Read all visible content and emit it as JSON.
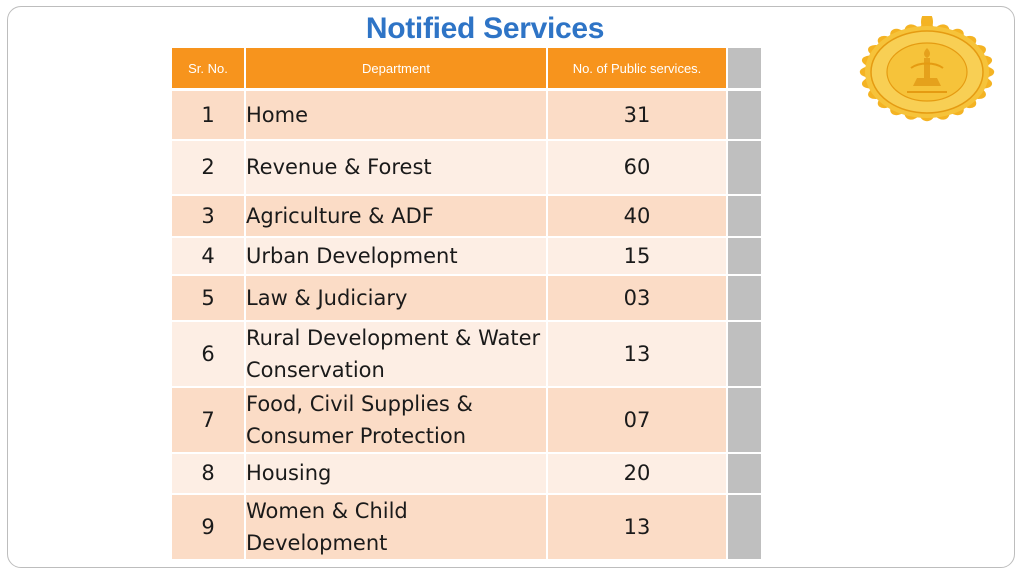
{
  "slide": {
    "title": "Notified Services"
  },
  "table": {
    "headers": [
      "Sr. No.",
      "Department",
      "No. of  Public services."
    ],
    "rows": [
      {
        "sr": "1",
        "department": "Home",
        "count": "31"
      },
      {
        "sr": "2",
        "department": "Revenue & Forest",
        "count": "60"
      },
      {
        "sr": "3",
        "department": "Agriculture & ADF",
        "count": "40"
      },
      {
        "sr": "4",
        "department": "Urban Development",
        "count": "15"
      },
      {
        "sr": "5",
        "department": "Law & Judiciary",
        "count": "03"
      },
      {
        "sr": "6",
        "department": "Rural Development & Water Conservation",
        "count": "13"
      },
      {
        "sr": "7",
        "department": "Food, Civil Supplies & Consumer Protection",
        "count": "07"
      },
      {
        "sr": "8",
        "department": "Housing",
        "count": "20"
      },
      {
        "sr": "9",
        "department": "Women & Child Development",
        "count": "13"
      }
    ]
  },
  "colors": {
    "title": "#2e74c6",
    "header": "#f7941d",
    "row_odd": "#fbdcc6",
    "row_even": "#fdeee4",
    "endcap": "#bfbfbf",
    "seal": "#f4b323"
  },
  "seal": {
    "icon": "maharashtra-government-seal-icon"
  }
}
